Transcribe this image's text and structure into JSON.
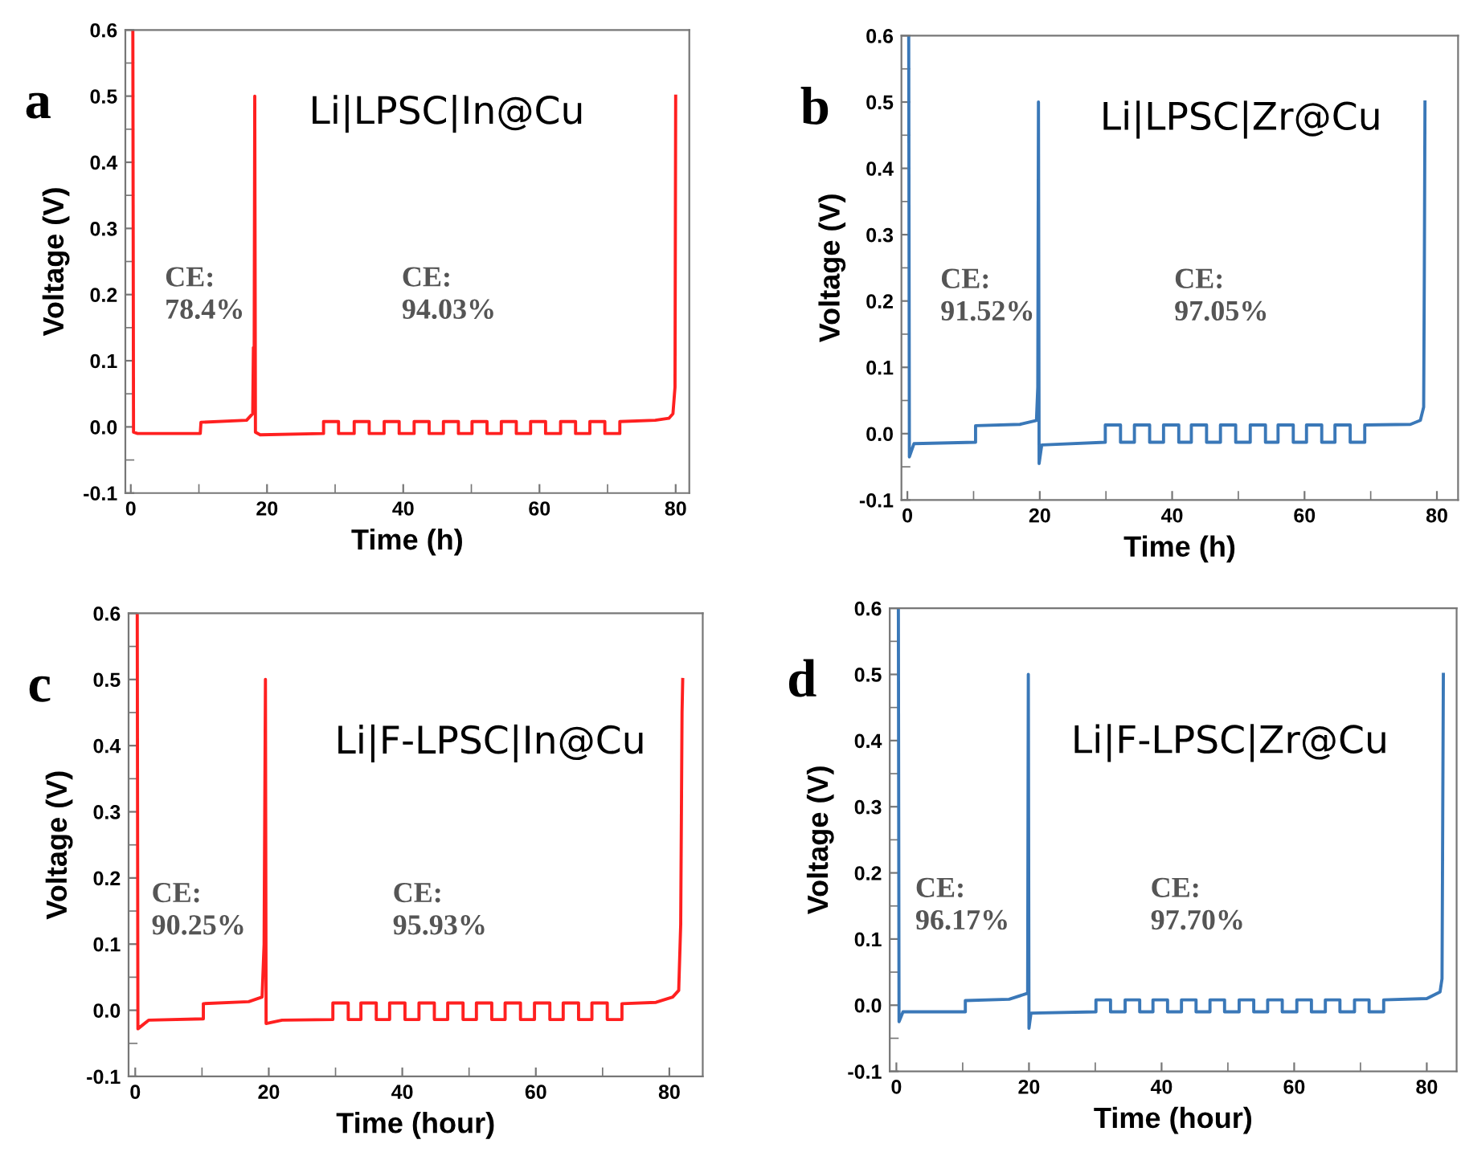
{
  "chart_data": [
    {
      "type": "line",
      "title": "a",
      "xlabel": "Time (h)",
      "ylabel": "Voltage (V)",
      "color": "#ff2020",
      "annotations": [
        "Li|LPSC|In@Cu",
        "CE:\n78.4%",
        "CE:\n94.03%"
      ],
      "xlim": [
        -0.8,
        82
      ],
      "ylim": [
        -0.1,
        0.6
      ],
      "xticks": [
        0,
        {
          "value": 10,
          "label": null
        },
        20,
        {
          "value": 30,
          "label": null
        },
        40,
        {
          "value": 50,
          "label": null
        },
        60,
        {
          "value": 70,
          "label": null
        },
        80
      ],
      "yticks": [
        -0.1,
        {
          "value": -0.05,
          "label": null
        },
        {
          "value": 0,
          "label": "0.0"
        },
        {
          "value": 0.05,
          "label": null
        },
        0.1,
        {
          "value": 0.15,
          "label": null
        },
        0.2,
        {
          "value": 0.25,
          "label": null
        },
        0.3,
        {
          "value": 0.35,
          "label": null
        },
        0.4,
        {
          "value": 0.45,
          "label": null
        },
        0.5,
        {
          "value": 0.55,
          "label": null
        },
        0.6
      ],
      "x": [
        0.3,
        0.4,
        1,
        10.2,
        10.3,
        17,
        17.9,
        18.0,
        18.1,
        18.2,
        18.3,
        19,
        28.3,
        28.3,
        30.5,
        30.5,
        32.8,
        32.8,
        35.0,
        35.0,
        37.2,
        37.2,
        39.4,
        39.4,
        41.6,
        41.6,
        43.8,
        43.8,
        45.9,
        45.9,
        48.1,
        48.1,
        50.1,
        50.1,
        52.3,
        52.3,
        54.4,
        54.4,
        56.6,
        56.6,
        58.7,
        58.7,
        60.9,
        60.9,
        63.1,
        63.1,
        65.3,
        65.3,
        67.4,
        67.4,
        69.6,
        69.6,
        71.8,
        71.8,
        77,
        79,
        79.6,
        79.9,
        80
      ],
      "values": [
        0.6,
        -0.008,
        -0.01,
        -0.01,
        0.007,
        0.01,
        0.02,
        0.12,
        0.05,
        0.5,
        -0.008,
        -0.012,
        -0.01,
        0.008,
        0.008,
        -0.01,
        -0.01,
        0.008,
        0.008,
        -0.01,
        -0.01,
        0.008,
        0.008,
        -0.01,
        -0.01,
        0.008,
        0.008,
        -0.01,
        -0.01,
        0.008,
        0.008,
        -0.01,
        -0.01,
        0.008,
        0.008,
        -0.01,
        -0.01,
        0.008,
        0.008,
        -0.01,
        -0.01,
        0.008,
        0.008,
        -0.01,
        -0.01,
        0.008,
        0.008,
        -0.01,
        -0.01,
        0.008,
        0.008,
        -0.01,
        -0.01,
        0.008,
        0.01,
        0.013,
        0.02,
        0.06,
        0.5
      ]
    },
    {
      "type": "line",
      "title": "b",
      "xlabel": "Time (h)",
      "ylabel": "Voltage (V)",
      "color": "#3a78b8",
      "annotations": [
        "Li|LPSC|Zr@Cu",
        "CE:\n91.52%",
        "CE:\n97.05%"
      ],
      "xlim": [
        -0.9,
        83.2
      ],
      "ylim": [
        -0.1,
        0.6
      ],
      "xticks": [
        0,
        {
          "value": 10,
          "label": null
        },
        20,
        {
          "value": 30,
          "label": null
        },
        40,
        {
          "value": 50,
          "label": null
        },
        60,
        {
          "value": 70,
          "label": null
        },
        80
      ],
      "yticks": [
        -0.1,
        {
          "value": -0.05,
          "label": null
        },
        {
          "value": 0,
          "label": "0.0"
        },
        {
          "value": 0.05,
          "label": null
        },
        0.1,
        {
          "value": 0.15,
          "label": null
        },
        0.2,
        {
          "value": 0.25,
          "label": null
        },
        0.3,
        {
          "value": 0.35,
          "label": null
        },
        0.4,
        {
          "value": 0.45,
          "label": null
        },
        0.5,
        {
          "value": 0.55,
          "label": null
        },
        0.6
      ],
      "x": [
        0.2,
        0.3,
        1,
        10.3,
        10.3,
        17,
        19.5,
        19.7,
        19.8,
        19.9,
        20.3,
        29.9,
        29.9,
        32.2,
        32.2,
        34.3,
        34.3,
        36.6,
        36.6,
        38.7,
        38.7,
        41.0,
        41.0,
        42.9,
        42.9,
        45.2,
        45.2,
        47.3,
        47.3,
        49.6,
        49.6,
        51.8,
        51.8,
        54.1,
        54.1,
        56.0,
        56.0,
        58.3,
        58.3,
        60.3,
        60.3,
        62.6,
        62.6,
        64.6,
        64.6,
        66.9,
        66.9,
        69.1,
        69.1,
        76,
        77.5,
        78,
        78.1,
        78.2
      ],
      "values": [
        0.6,
        -0.035,
        -0.015,
        -0.013,
        0.012,
        0.014,
        0.02,
        0.07,
        0.5,
        -0.045,
        -0.017,
        -0.013,
        0.013,
        0.013,
        -0.013,
        -0.013,
        0.013,
        0.013,
        -0.013,
        -0.013,
        0.013,
        0.013,
        -0.013,
        -0.013,
        0.013,
        0.013,
        -0.013,
        -0.013,
        0.013,
        0.013,
        -0.013,
        -0.013,
        0.013,
        0.013,
        -0.013,
        -0.013,
        0.013,
        0.013,
        -0.013,
        -0.013,
        0.013,
        0.013,
        -0.013,
        -0.013,
        0.013,
        0.013,
        -0.013,
        -0.013,
        0.013,
        0.014,
        0.02,
        0.04,
        0.24,
        0.5
      ]
    },
    {
      "type": "line",
      "title": "c",
      "xlabel": "Time (hour)",
      "ylabel": "Voltage (V)",
      "color": "#ff2020",
      "annotations": [
        "Li|F-LPSC|In@Cu",
        "CE:\n90.25%",
        "CE:\n95.93%"
      ],
      "xlim": [
        -1,
        85
      ],
      "ylim": [
        -0.1,
        0.6
      ],
      "xticks": [
        0,
        {
          "value": 10,
          "label": null
        },
        20,
        {
          "value": 30,
          "label": null
        },
        40,
        {
          "value": 50,
          "label": null
        },
        60,
        {
          "value": 70,
          "label": null
        },
        80
      ],
      "yticks": [
        -0.1,
        {
          "value": -0.05,
          "label": null
        },
        {
          "value": 0,
          "label": "0.0"
        },
        {
          "value": 0.05,
          "label": null
        },
        0.1,
        {
          "value": 0.15,
          "label": null
        },
        0.2,
        {
          "value": 0.25,
          "label": null
        },
        0.3,
        {
          "value": 0.35,
          "label": null
        },
        0.4,
        {
          "value": 0.45,
          "label": null
        },
        0.5,
        {
          "value": 0.55,
          "label": null
        },
        0.6
      ],
      "x": [
        0.3,
        0.4,
        2,
        10.2,
        10.2,
        17,
        19,
        19.3,
        19.4,
        19.5,
        19.6,
        22,
        29.6,
        29.6,
        31.9,
        31.9,
        33.8,
        33.8,
        36.1,
        36.1,
        38.1,
        38.1,
        40.4,
        40.4,
        42.5,
        42.5,
        44.8,
        44.8,
        46.8,
        46.8,
        49.1,
        49.1,
        51.1,
        51.1,
        53.4,
        53.4,
        55.4,
        55.4,
        57.7,
        57.7,
        59.8,
        59.8,
        62.1,
        62.1,
        64.1,
        64.1,
        66.4,
        66.4,
        68.4,
        68.4,
        70.7,
        70.7,
        72.9,
        72.9,
        78,
        80.5,
        81.4,
        81.7,
        81.9,
        82
      ],
      "values": [
        0.6,
        -0.028,
        -0.015,
        -0.013,
        0.01,
        0.013,
        0.02,
        0.1,
        0.3,
        0.5,
        -0.02,
        -0.015,
        -0.014,
        0.011,
        0.011,
        -0.014,
        -0.014,
        0.011,
        0.011,
        -0.014,
        -0.014,
        0.011,
        0.011,
        -0.014,
        -0.014,
        0.011,
        0.011,
        -0.014,
        -0.014,
        0.011,
        0.011,
        -0.014,
        -0.014,
        0.011,
        0.011,
        -0.014,
        -0.014,
        0.011,
        0.011,
        -0.014,
        -0.014,
        0.011,
        0.011,
        -0.014,
        -0.014,
        0.011,
        0.011,
        -0.014,
        -0.014,
        0.011,
        0.011,
        -0.014,
        -0.014,
        0.01,
        0.012,
        0.02,
        0.03,
        0.13,
        0.45,
        0.5
      ]
    },
    {
      "type": "line",
      "title": "d",
      "xlabel": "Time (hour)",
      "ylabel": "Voltage (V)",
      "color": "#3a78b8",
      "annotations": [
        "Li|F-LPSC|Zr@Cu",
        "CE:\n96.17%",
        "CE:\n97.70%"
      ],
      "xlim": [
        -1,
        84.5
      ],
      "ylim": [
        -0.1,
        0.6
      ],
      "xticks": [
        0,
        {
          "value": 10,
          "label": null
        },
        20,
        {
          "value": 30,
          "label": null
        },
        40,
        {
          "value": 50,
          "label": null
        },
        60,
        {
          "value": 70,
          "label": null
        },
        80
      ],
      "yticks": [
        -0.1,
        {
          "value": -0.05,
          "label": null
        },
        {
          "value": 0,
          "label": "0.0"
        },
        {
          "value": 0.05,
          "label": null
        },
        0.1,
        {
          "value": 0.15,
          "label": null
        },
        0.2,
        {
          "value": 0.25,
          "label": null
        },
        0.3,
        {
          "value": 0.35,
          "label": null
        },
        0.4,
        {
          "value": 0.45,
          "label": null
        },
        0.5,
        {
          "value": 0.55,
          "label": null
        },
        0.6
      ],
      "x": [
        0.3,
        0.4,
        1,
        10.4,
        10.4,
        17,
        19.8,
        19.9,
        20.0,
        20.3,
        30.1,
        30.1,
        32.3,
        32.3,
        34.5,
        34.5,
        36.7,
        36.7,
        38.7,
        38.7,
        40.9,
        40.9,
        43.0,
        43.0,
        45.2,
        45.2,
        47.3,
        47.3,
        49.5,
        49.5,
        51.7,
        51.7,
        53.9,
        53.9,
        56.0,
        56.0,
        58.2,
        58.2,
        60.4,
        60.4,
        62.6,
        62.6,
        64.7,
        64.7,
        66.9,
        66.9,
        69.1,
        69.1,
        71.3,
        71.3,
        73.5,
        73.5,
        80,
        82,
        82.3,
        82.5
      ],
      "values": [
        0.6,
        -0.025,
        -0.01,
        -0.01,
        0.007,
        0.009,
        0.018,
        0.5,
        -0.035,
        -0.012,
        -0.01,
        0.008,
        0.008,
        -0.01,
        -0.01,
        0.008,
        0.008,
        -0.01,
        -0.01,
        0.008,
        0.008,
        -0.01,
        -0.01,
        0.008,
        0.008,
        -0.01,
        -0.01,
        0.008,
        0.008,
        -0.01,
        -0.01,
        0.008,
        0.008,
        -0.01,
        -0.01,
        0.008,
        0.008,
        -0.01,
        -0.01,
        0.008,
        0.008,
        -0.01,
        -0.01,
        0.008,
        0.008,
        -0.01,
        -0.01,
        0.008,
        0.008,
        -0.01,
        -0.01,
        0.008,
        0.01,
        0.02,
        0.04,
        0.5
      ]
    }
  ]
}
